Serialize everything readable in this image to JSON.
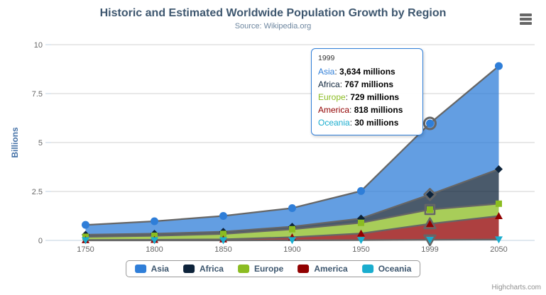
{
  "icons": {
    "context_menu": "hamburger-menu"
  },
  "chart_data": {
    "type": "area",
    "stacking": "normal",
    "title": "Historic and Estimated Worldwide Population Growth by Region",
    "subtitle": "Source: Wikipedia.org",
    "xlabel": "",
    "ylabel": "Billions",
    "units": "millions",
    "ylim": [
      0,
      10
    ],
    "yticks": [
      0,
      2.5,
      5,
      7.5,
      10
    ],
    "ytick_labels": [
      "0",
      "2.5",
      "5",
      "7.5",
      "10"
    ],
    "categories": [
      "1750",
      "1800",
      "1850",
      "1900",
      "1950",
      "1999",
      "2050"
    ],
    "grid": "horizontal",
    "legend_position": "bottom",
    "hover_index": 5,
    "line_color": "#666666",
    "fill_opacity": 0.75,
    "grid_color": "#D0D0D0",
    "axis_line_color": "#C0D0E0",
    "axis_label_color": "#666666",
    "ylabel_color": "#4572A7",
    "series": [
      {
        "name": "Asia",
        "color": "#2f7ed8",
        "marker": "circle",
        "values": [
          502,
          635,
          809,
          947,
          1402,
          3634,
          5268
        ]
      },
      {
        "name": "Africa",
        "color": "#0d233a",
        "marker": "diamond",
        "values": [
          106,
          107,
          111,
          133,
          221,
          767,
          1766
        ]
      },
      {
        "name": "Europe",
        "color": "#8bbc21",
        "marker": "square",
        "values": [
          163,
          203,
          276,
          408,
          547,
          729,
          628
        ]
      },
      {
        "name": "America",
        "color": "#910000",
        "marker": "triangle",
        "values": [
          18,
          31,
          54,
          156,
          339,
          818,
          1201
        ]
      },
      {
        "name": "Oceania",
        "color": "#1aadce",
        "marker": "triangle-down",
        "values": [
          2,
          2,
          2,
          6,
          13,
          30,
          46
        ]
      }
    ]
  },
  "tooltip": {
    "header": "1999",
    "rows": [
      {
        "label": "Asia",
        "value": "3,634 millions"
      },
      {
        "label": "Africa",
        "value": "767 millions"
      },
      {
        "label": "Europe",
        "value": "729 millions"
      },
      {
        "label": "America",
        "value": "818 millions"
      },
      {
        "label": "Oceania",
        "value": "30 millions"
      }
    ]
  },
  "credits": {
    "text": "Highcharts.com"
  }
}
